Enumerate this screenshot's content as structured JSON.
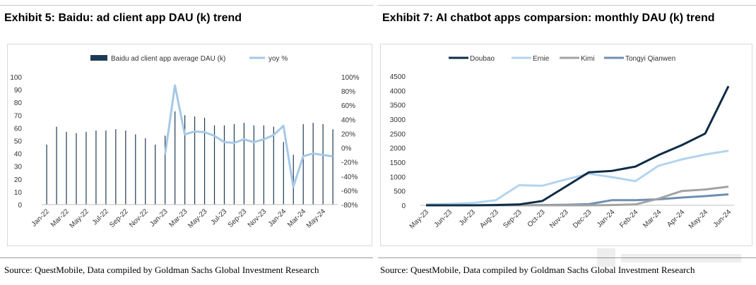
{
  "left": {
    "exhibit_title": "Exhibit 5: Baidu: ad client app DAU (k) trend",
    "source": "Source: QuestMobile, Data compiled by Goldman Sachs Global Investment Research"
  },
  "right": {
    "exhibit_title": "Exhibit 7: AI chatbot apps comparsion: monthly DAU (k) trend",
    "source": "Source: QuestMobile, Data compiled by Goldman Sachs Global Investment Research"
  },
  "chart_data": [
    {
      "type": "bar",
      "title": "",
      "legend": [
        "Baidu ad client app average DAU (k)",
        "yoy %"
      ],
      "legend_placement": "top",
      "grid": false,
      "categories": [
        "Jan-22",
        "Feb-22",
        "Mar-22",
        "Apr-22",
        "May-22",
        "Jun-22",
        "Jul-22",
        "Aug-22",
        "Sep-22",
        "Oct-22",
        "Nov-22",
        "Dec-22",
        "Jan-23",
        "Feb-23",
        "Mar-23",
        "Apr-23",
        "May-23",
        "Jun-23",
        "Jul-23",
        "Aug-23",
        "Sep-23",
        "Oct-23",
        "Nov-23",
        "Dec-23",
        "Jan-24",
        "Feb-24",
        "Mar-24",
        "Apr-24",
        "May-24",
        "Jun-24"
      ],
      "x_tick_labels": [
        "Jan-22",
        "Mar-22",
        "May-22",
        "Jul-22",
        "Sep-22",
        "Nov-22",
        "Jan-23",
        "Mar-23",
        "May-23",
        "Jul-23",
        "Sep-23",
        "Nov-23",
        "Jan-24",
        "Mar-24",
        "May-24"
      ],
      "y_left": {
        "min": 0,
        "max": 100,
        "step": 10,
        "ticks": [
          "0",
          "10",
          "20",
          "30",
          "40",
          "50",
          "60",
          "70",
          "80",
          "90",
          "100"
        ]
      },
      "y_right": {
        "min": -80,
        "max": 100,
        "step": 20,
        "ticks": [
          "-80%",
          "-60%",
          "-40%",
          "-20%",
          "0%",
          "20%",
          "40%",
          "60%",
          "80%",
          "100%"
        ]
      },
      "series": [
        {
          "name": "Baidu ad client app average DAU (k)",
          "type": "bar",
          "axis": "left",
          "color": "#1f3a55",
          "values": [
            47,
            61,
            57,
            56,
            57,
            58,
            58,
            59,
            58,
            55,
            52,
            47,
            54,
            73,
            70,
            69,
            68,
            62,
            62,
            63,
            64,
            62,
            62,
            61,
            49,
            39,
            63,
            64,
            63,
            59
          ]
        },
        {
          "name": "yoy %",
          "type": "line",
          "axis": "right",
          "color": "#a6c8e6",
          "values": [
            null,
            null,
            null,
            null,
            null,
            null,
            null,
            null,
            null,
            null,
            null,
            null,
            -10,
            88,
            19,
            23,
            22,
            17,
            8,
            7,
            12,
            8,
            12,
            18,
            31,
            -55,
            -12,
            -8,
            -10,
            -12
          ]
        }
      ]
    },
    {
      "type": "line",
      "title": "",
      "legend": [
        "Doubao",
        "Ernie",
        "Kimi",
        "Tongyi Qianwen"
      ],
      "legend_placement": "top",
      "grid": false,
      "categories": [
        "May-23",
        "Jun-23",
        "Jul-23",
        "Aug-23",
        "Sep-23",
        "Oct-23",
        "Nov-23",
        "Dec-23",
        "Jan-24",
        "Feb-24",
        "Mar-24",
        "Apr-24",
        "May-24",
        "Jun-24"
      ],
      "y": {
        "min": 0,
        "max": 4500,
        "step": 500,
        "ticks": [
          "0",
          "500",
          "1000",
          "1500",
          "2000",
          "2500",
          "3000",
          "3500",
          "4000",
          "4500"
        ]
      },
      "series": [
        {
          "name": "Doubao",
          "color": "#0e2c46",
          "values": [
            0,
            0,
            0,
            10,
            30,
            150,
            650,
            1150,
            1200,
            1350,
            1750,
            2100,
            2500,
            4150
          ]
        },
        {
          "name": "Ernie",
          "color": "#b3d4ef",
          "values": [
            30,
            50,
            80,
            180,
            700,
            680,
            900,
            1100,
            980,
            840,
            1380,
            1600,
            1770,
            1900
          ]
        },
        {
          "name": "Kimi",
          "color": "#a3a3a3",
          "values": [
            0,
            0,
            0,
            0,
            0,
            0,
            0,
            0,
            10,
            30,
            230,
            500,
            550,
            650
          ]
        },
        {
          "name": "Tongyi Qianwen",
          "color": "#6e8fb3",
          "values": [
            0,
            0,
            0,
            0,
            0,
            10,
            20,
            40,
            180,
            180,
            210,
            270,
            320,
            380
          ]
        }
      ]
    }
  ]
}
